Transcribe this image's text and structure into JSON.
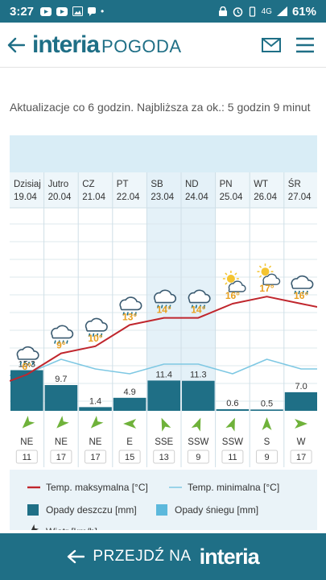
{
  "status_bar": {
    "time": "3:27",
    "network": "4G",
    "battery": "61%"
  },
  "header": {
    "brand": "interia",
    "section": "POGODA",
    "icons": [
      "back-arrow-icon",
      "mail-icon",
      "hamburger-menu-icon"
    ]
  },
  "update_note": "Aktualizacje co 6 godzin. Najbliższa za ok.: 5 godzin 9 minut",
  "colors": {
    "accent": "#1f6f86",
    "rain_bar": "#1f6f86",
    "snow_bar": "#5cb8dc",
    "max_line": "#c0262d",
    "min_line": "#7ec8e3",
    "temp_label": "#e8a020",
    "weekend_shade": "#e4f1f8"
  },
  "chart_data": {
    "type": "weather-forecast",
    "days": [
      {
        "day": "Dzisiaj",
        "date": "19.04",
        "temp_label": "6°",
        "temp_max": 6,
        "temp_min": 6,
        "rain": 15.3,
        "rain_label": "15.3",
        "wind_dir": "NE",
        "wind_speed": "11",
        "icon": "rain-cloud-icon",
        "weekend": false
      },
      {
        "day": "Jutro",
        "date": "20.04",
        "temp_label": "9°",
        "temp_max": 9,
        "temp_min": 9,
        "rain": 9.7,
        "rain_label": "9.7",
        "wind_dir": "NE",
        "wind_speed": "17",
        "icon": "rain-cloud-icon",
        "weekend": false
      },
      {
        "day": "CZ",
        "date": "21.04",
        "temp_label": "10°",
        "temp_max": 10,
        "temp_min": 7,
        "rain": 1.4,
        "rain_label": "1.4",
        "wind_dir": "NE",
        "wind_speed": "17",
        "icon": "rain-cloud-icon",
        "weekend": false
      },
      {
        "day": "PT",
        "date": "22.04",
        "temp_label": "13°",
        "temp_max": 13,
        "temp_min": 6,
        "rain": 4.9,
        "rain_label": "4.9",
        "wind_dir": "E",
        "wind_speed": "15",
        "icon": "rain-cloud-icon",
        "weekend": false
      },
      {
        "day": "SB",
        "date": "23.04",
        "temp_label": "14°",
        "temp_max": 14,
        "temp_min": 8,
        "rain": 11.4,
        "rain_label": "11.4",
        "wind_dir": "SSE",
        "wind_speed": "13",
        "icon": "rain-cloud-icon",
        "weekend": true
      },
      {
        "day": "ND",
        "date": "24.04",
        "temp_label": "14°",
        "temp_max": 14,
        "temp_min": 8,
        "rain": 11.3,
        "rain_label": "11.3",
        "wind_dir": "SSW",
        "wind_speed": "9",
        "icon": "rain-cloud-icon",
        "weekend": true
      },
      {
        "day": "PN",
        "date": "25.04",
        "temp_label": "16°",
        "temp_max": 16,
        "temp_min": 6,
        "rain": 0.6,
        "rain_label": "0.6",
        "wind_dir": "SSW",
        "wind_speed": "11",
        "icon": "sun-cloud-icon",
        "weekend": false
      },
      {
        "day": "WT",
        "date": "26.04",
        "temp_label": "17°",
        "temp_max": 17,
        "temp_min": 9,
        "rain": 0.5,
        "rain_label": "0.5",
        "wind_dir": "S",
        "wind_speed": "9",
        "icon": "sun-cloud-icon",
        "weekend": false
      },
      {
        "day": "ŚR",
        "date": "27.04",
        "temp_label": "16°",
        "temp_max": 16,
        "temp_min": 7,
        "rain": 7.0,
        "rain_label": "7.0",
        "wind_dir": "W",
        "wind_speed": "17",
        "icon": "rain-cloud-icon",
        "weekend": false
      }
    ],
    "legend": {
      "max_temp": "Temp. maksymalna [°C]",
      "min_temp": "Temp. minimalna [°C]",
      "rain": "Opady deszczu [mm]",
      "snow": "Opady śniegu [mm]",
      "wind": "Wiatr [km/h]"
    }
  },
  "bottom_bar": {
    "cta": "PRZEJDŹ NA",
    "brand": "interia"
  }
}
